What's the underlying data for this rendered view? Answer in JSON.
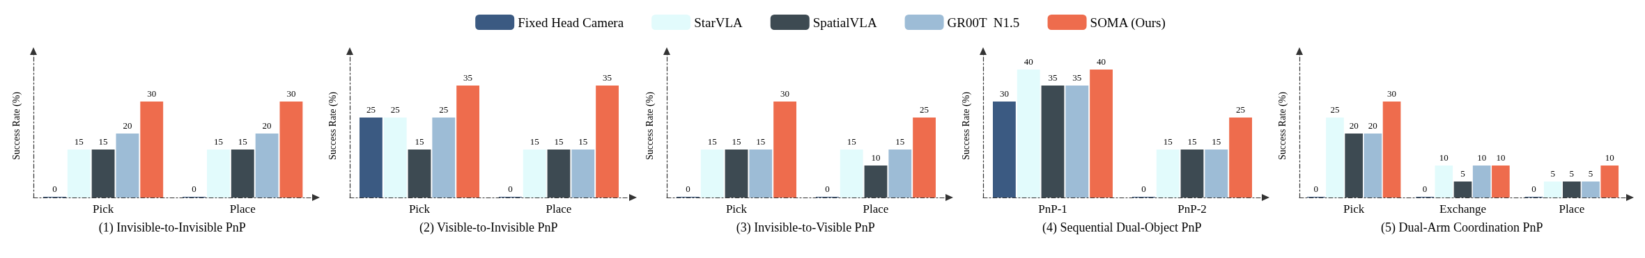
{
  "chart_data": [
    {
      "type": "bar",
      "xlabel": "(1) Invisible-to-Invisible PnP",
      "ylabel": "Success Rate (%)",
      "categories": [
        "Pick",
        "Place"
      ],
      "legend": "top",
      "grid": false,
      "tick_labels": "x",
      "data_labels": true,
      "series": [
        {
          "name": "Fixed Head Camera",
          "color": "#3b5a82",
          "values": [
            0,
            0
          ]
        },
        {
          "name": "StarVLA",
          "color": "#e2fbfc",
          "values": [
            15,
            15
          ]
        },
        {
          "name": "SpatialVLA",
          "color": "#3d4a52",
          "values": [
            15,
            15
          ]
        },
        {
          "name": "GR00T  N1.5",
          "color": "#9dbcd6",
          "values": [
            20,
            20
          ]
        },
        {
          "name": "SOMA (Ours)",
          "color": "#ee6c4d",
          "values": [
            30,
            30
          ]
        }
      ]
    },
    {
      "type": "bar",
      "xlabel": "(2) Visible-to-Invisible PnP",
      "ylabel": "Success Rate (%)",
      "categories": [
        "Pick",
        "Place"
      ],
      "grid": false,
      "tick_labels": "x",
      "data_labels": true,
      "series": [
        {
          "color": "#3b5a82",
          "values": [
            25,
            0
          ]
        },
        {
          "color": "#e2fbfc",
          "values": [
            25,
            15
          ]
        },
        {
          "color": "#3d4a52",
          "values": [
            15,
            15
          ]
        },
        {
          "color": "#9dbcd6",
          "values": [
            25,
            15
          ]
        },
        {
          "color": "#ee6c4d",
          "values": [
            35,
            35
          ]
        }
      ]
    },
    {
      "type": "bar",
      "xlabel": "(3) Invisible-to-Visible PnP",
      "ylabel": "Success Rate (%)",
      "categories": [
        "Pick",
        "Place"
      ],
      "grid": false,
      "tick_labels": "x",
      "data_labels": true,
      "series": [
        {
          "color": "#3b5a82",
          "values": [
            0,
            0
          ]
        },
        {
          "color": "#e2fbfc",
          "values": [
            15,
            15
          ]
        },
        {
          "color": "#3d4a52",
          "values": [
            15,
            10
          ]
        },
        {
          "color": "#9dbcd6",
          "values": [
            15,
            15
          ]
        },
        {
          "color": "#ee6c4d",
          "values": [
            30,
            25
          ]
        }
      ]
    },
    {
      "type": "bar",
      "xlabel": "(4) Sequential Dual-Object PnP",
      "ylabel": "Success Rate (%)",
      "categories": [
        "PnP-1",
        "PnP-2"
      ],
      "grid": false,
      "tick_labels": "x",
      "data_labels": true,
      "series": [
        {
          "color": "#3b5a82",
          "values": [
            30,
            0
          ]
        },
        {
          "color": "#e2fbfc",
          "values": [
            40,
            15
          ]
        },
        {
          "color": "#3d4a52",
          "values": [
            35,
            15
          ]
        },
        {
          "color": "#9dbcd6",
          "values": [
            35,
            15
          ]
        },
        {
          "color": "#ee6c4d",
          "values": [
            40,
            25
          ]
        }
      ]
    },
    {
      "type": "bar",
      "xlabel": "(5) Dual-Arm Coordination PnP",
      "ylabel": "Success Rate (%)",
      "categories": [
        "Pick",
        "Exchange",
        "Place"
      ],
      "grid": false,
      "tick_labels": "x",
      "data_labels": true,
      "series": [
        {
          "color": "#3b5a82",
          "values": [
            0,
            0,
            0
          ]
        },
        {
          "color": "#e2fbfc",
          "values": [
            25,
            10,
            5
          ]
        },
        {
          "color": "#3d4a52",
          "values": [
            20,
            5,
            5
          ]
        },
        {
          "color": "#9dbcd6",
          "values": [
            20,
            10,
            5
          ]
        },
        {
          "color": "#ee6c4d",
          "values": [
            30,
            10,
            10
          ]
        }
      ]
    }
  ]
}
